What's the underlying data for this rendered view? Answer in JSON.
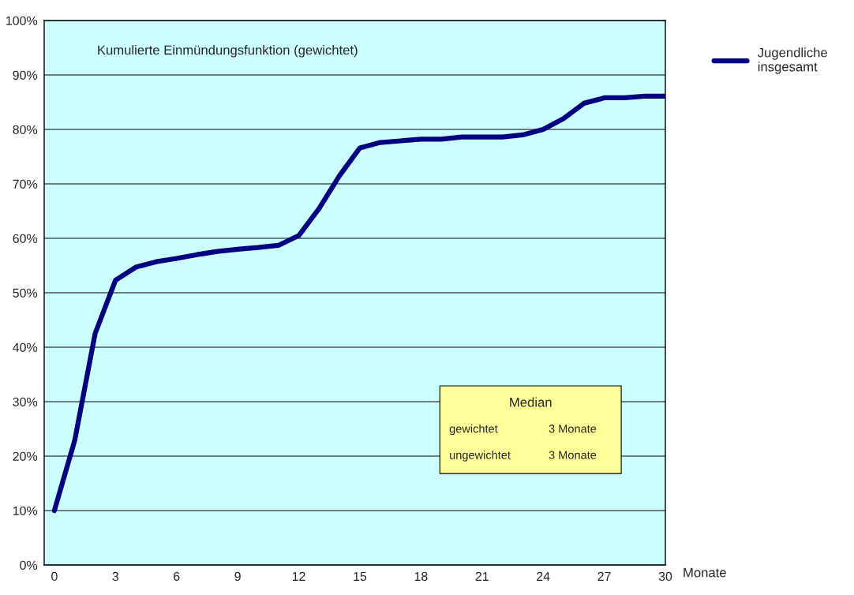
{
  "chart_data": {
    "type": "line",
    "title": "Kumulierte Einmündungsfunktion (gewichtet)",
    "xlabel": "Monate",
    "x": [
      0,
      1,
      2,
      3,
      4,
      5,
      6,
      7,
      8,
      9,
      10,
      11,
      12,
      13,
      14,
      15,
      16,
      17,
      18,
      19,
      20,
      21,
      22,
      23,
      24,
      25,
      26,
      27,
      28,
      29,
      30
    ],
    "series": [
      {
        "name": "Jugendliche insgesamt",
        "color": "#000080",
        "values": [
          10,
          22.9,
          42.5,
          52.3,
          54.7,
          55.7,
          56.3,
          57,
          57.6,
          58,
          58.3,
          58.7,
          60.5,
          65.5,
          71.5,
          76.6,
          77.6,
          77.9,
          78.2,
          78.2,
          78.6,
          78.6,
          78.6,
          79,
          80,
          82,
          84.8,
          85.8,
          85.8,
          86.1,
          86.1
        ]
      }
    ],
    "xlim": [
      -0.5,
      30
    ],
    "xticks": [
      0,
      3,
      6,
      9,
      12,
      15,
      18,
      21,
      24,
      27,
      30
    ],
    "ylim": [
      0,
      100
    ],
    "yticks": [
      {
        "value": 0,
        "label": "0%"
      },
      {
        "value": 10,
        "label": "10%"
      },
      {
        "value": 20,
        "label": "20%"
      },
      {
        "value": 30,
        "label": "30%"
      },
      {
        "value": 40,
        "label": "40%"
      },
      {
        "value": 50,
        "label": "50%"
      },
      {
        "value": 60,
        "label": "60%"
      },
      {
        "value": 70,
        "label": "70%"
      },
      {
        "value": 80,
        "label": "80%"
      },
      {
        "value": 90,
        "label": "90%"
      },
      {
        "value": 100,
        "label": "100%"
      }
    ],
    "grid": "y",
    "legend": "right",
    "marker": "none",
    "line_style": "solid",
    "annotations": [
      "Median",
      "gewichtet",
      "3 Monate",
      "ungewichtet",
      "3 Monate"
    ]
  }
}
